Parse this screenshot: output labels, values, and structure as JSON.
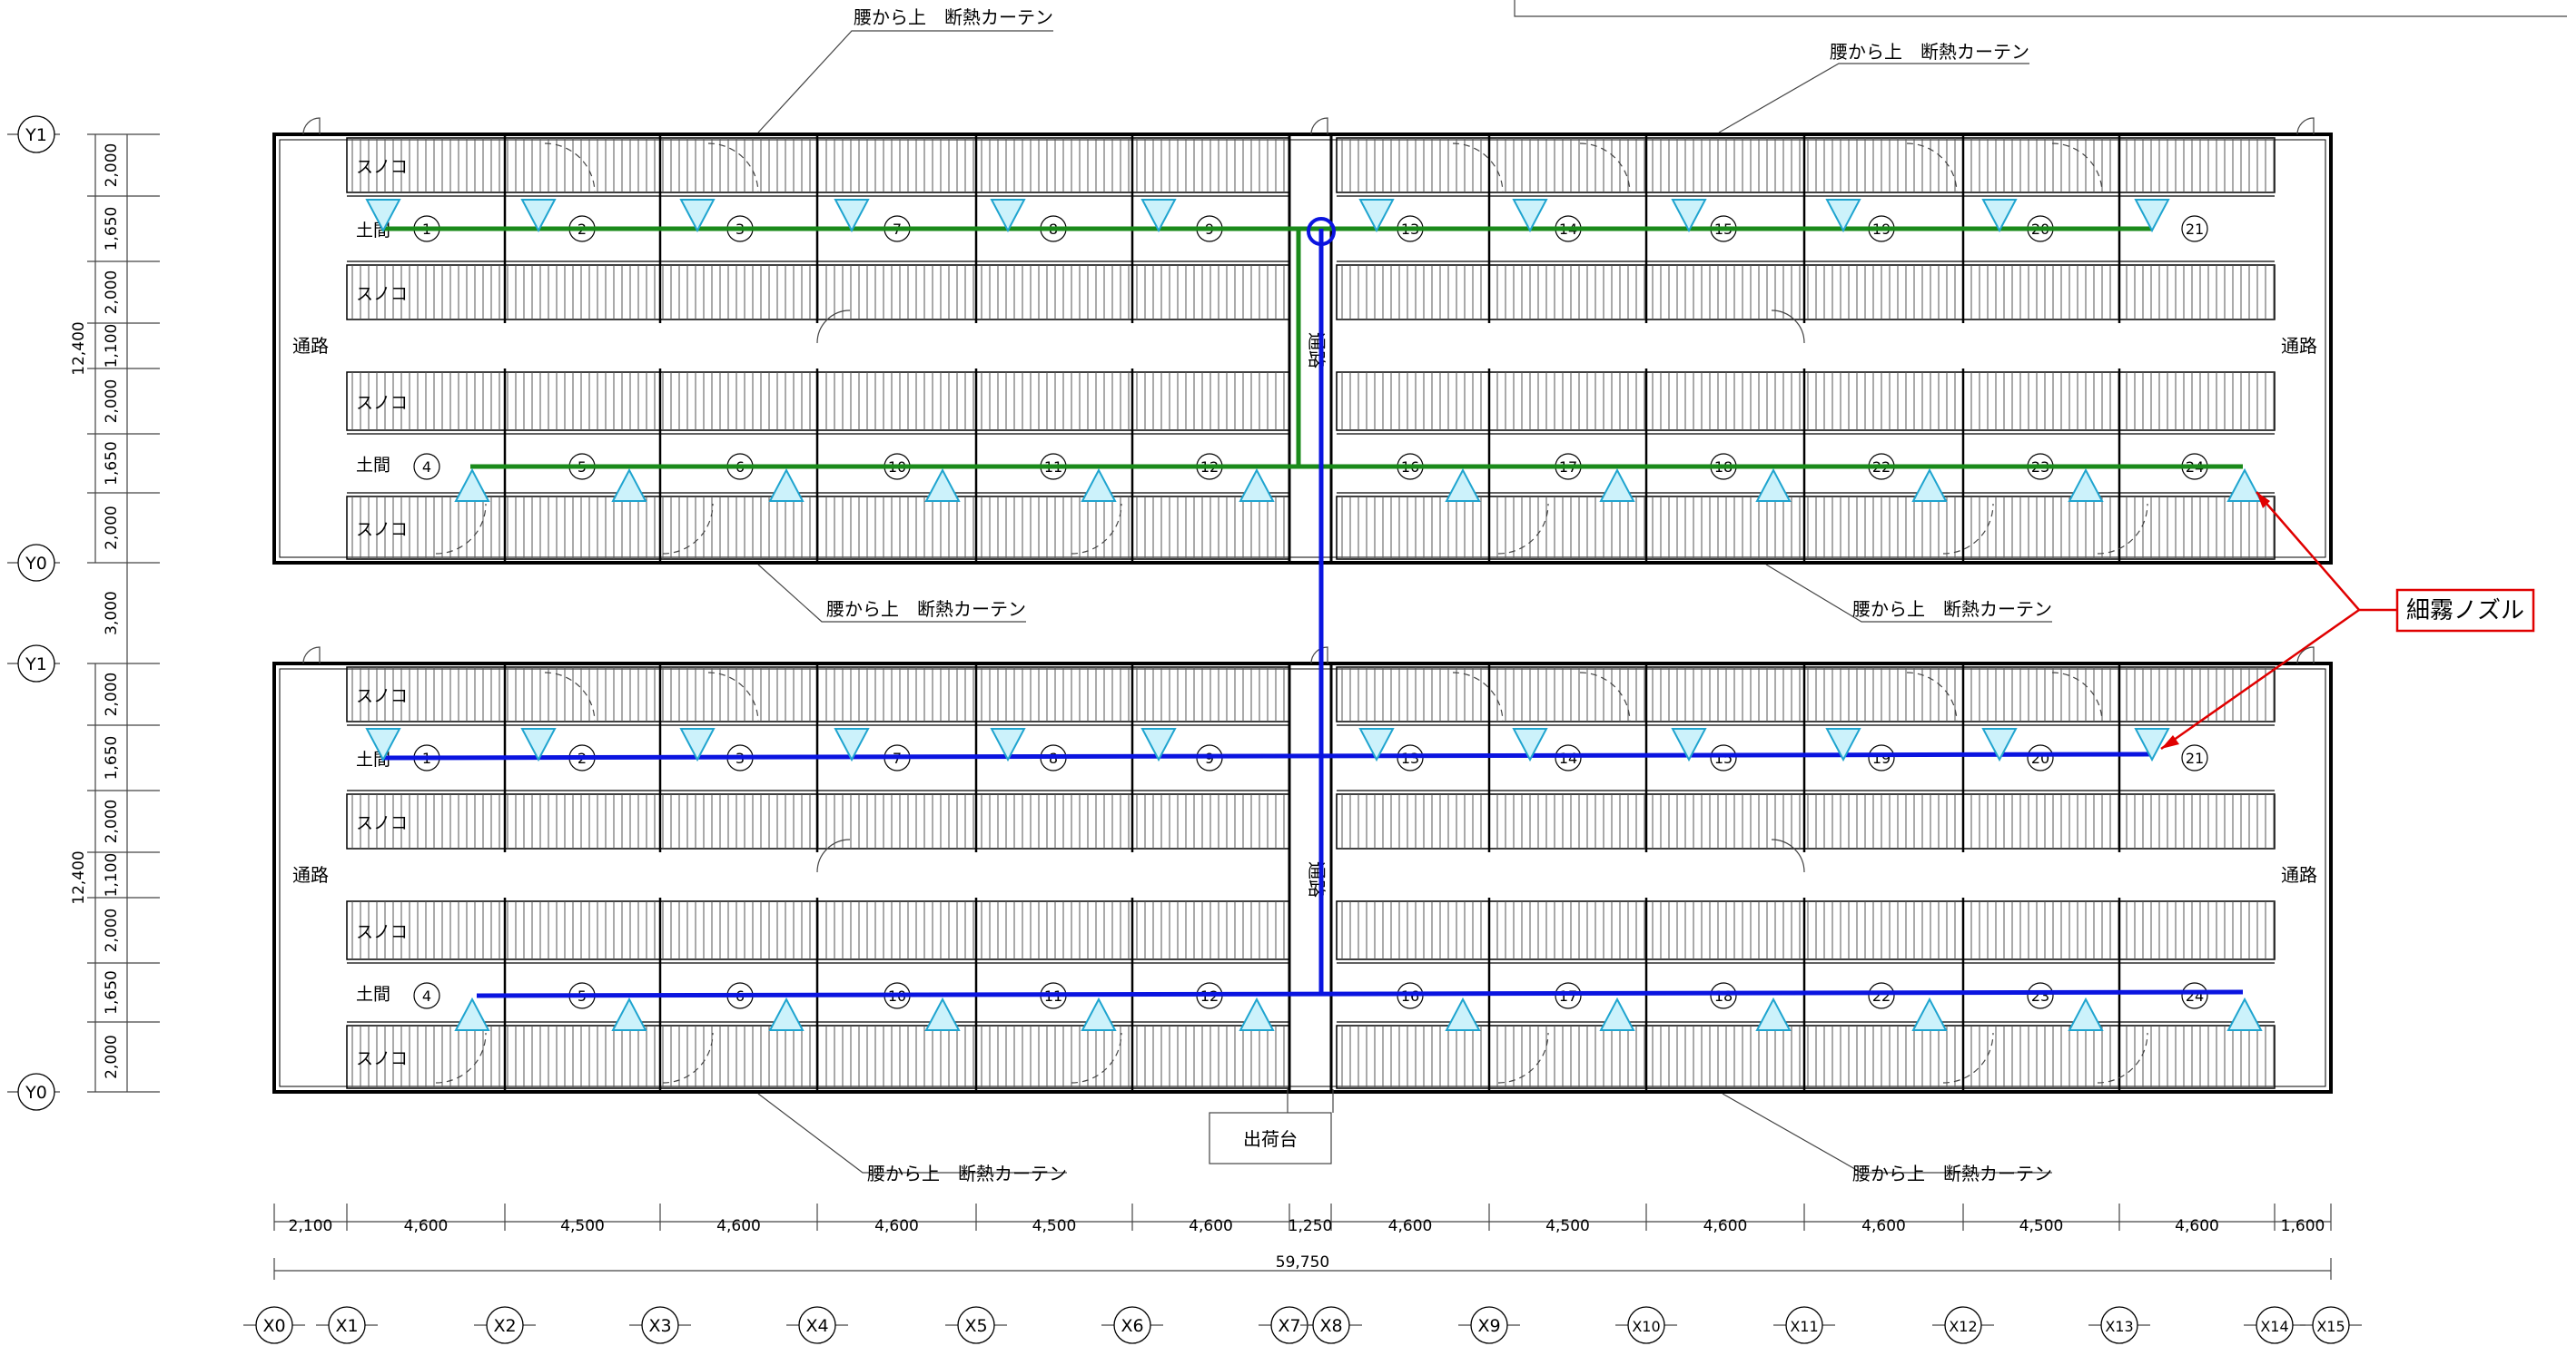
{
  "labels": {
    "curtain": "腰から上　断熱カーテン",
    "sunoko": "スノコ",
    "doma": "土間",
    "aisle": "通路",
    "shipping": "出荷台",
    "callout": "細霧ノズル"
  },
  "house_rows": [
    {
      "upper": [
        "1",
        "2",
        "3",
        "7",
        "8",
        "9",
        "13",
        "14",
        "15",
        "19",
        "20",
        "21"
      ],
      "lower": [
        "4",
        "5",
        "6",
        "10",
        "11",
        "12",
        "16",
        "17",
        "18",
        "22",
        "23",
        "24"
      ]
    },
    {
      "upper": [
        "1",
        "2",
        "3",
        "7",
        "8",
        "9",
        "13",
        "14",
        "15",
        "19",
        "20",
        "21"
      ],
      "lower": [
        "4",
        "5",
        "6",
        "10",
        "11",
        "12",
        "16",
        "17",
        "18",
        "22",
        "23",
        "24"
      ]
    }
  ],
  "y_grid": [
    {
      "label": "Y1"
    },
    {
      "label": "Y0"
    },
    {
      "label": "Y1"
    },
    {
      "label": "Y0"
    }
  ],
  "y_dims_block": [
    "2,000",
    "1,650",
    "2,000",
    "1,100",
    "2,000",
    "1,650",
    "2,000"
  ],
  "y_total": "12,400",
  "y_gap": "3,000",
  "x_dims": [
    "2,100",
    "4,600",
    "4,500",
    "4,600",
    "4,600",
    "4,500",
    "4,600",
    "1,250",
    "4,600",
    "4,500",
    "4,600",
    "4,600",
    "4,500",
    "4,600",
    "1,600"
  ],
  "x_total": "59,750",
  "x_grid": [
    "X0",
    "X1",
    "X2",
    "X3",
    "X4",
    "X5",
    "X6",
    "X7",
    "X8",
    "X9",
    "X10",
    "X11",
    "X12",
    "X13",
    "X14",
    "X15"
  ],
  "colors": {
    "pipe_green": "#1a8a1a",
    "pipe_blue": "#0a14e0",
    "nozzle_fill": "#ccf2fb",
    "nozzle_stroke": "#1fa4cf",
    "callout": "#e00000"
  }
}
